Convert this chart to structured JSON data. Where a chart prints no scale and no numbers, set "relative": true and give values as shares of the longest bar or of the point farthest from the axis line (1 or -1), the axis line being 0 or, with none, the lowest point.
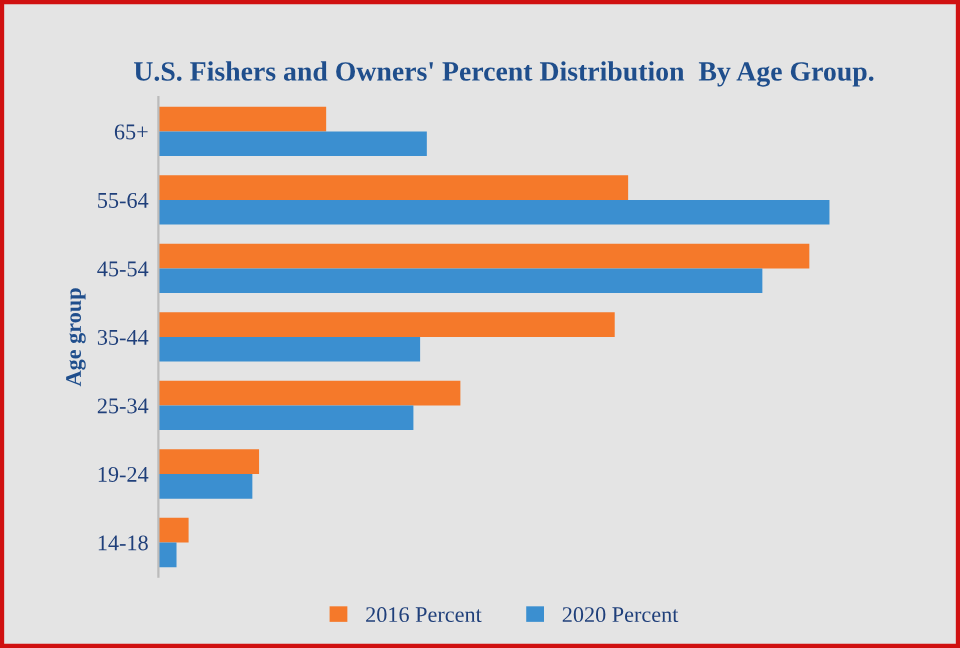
{
  "chart_data": {
    "type": "bar",
    "orientation": "horizontal",
    "relative": true,
    "title": "U.S. Fishers and Owners' Percent Distribution  By Age Group.",
    "ylabel": "Age group",
    "categories": [
      "65+",
      "55-64",
      "45-54",
      "35-44",
      "25-34",
      "19-24",
      "14-18"
    ],
    "series": [
      {
        "name": "2016 Percent",
        "color": "#f5792a",
        "values": [
          0.25,
          0.7,
          0.97,
          0.68,
          0.45,
          0.15,
          0.045
        ]
      },
      {
        "name": "2020 Percent",
        "color": "#3b8fd0",
        "values": [
          0.4,
          1.0,
          0.9,
          0.39,
          0.38,
          0.14,
          0.027
        ]
      }
    ],
    "legend": "bottom",
    "grid": false
  }
}
